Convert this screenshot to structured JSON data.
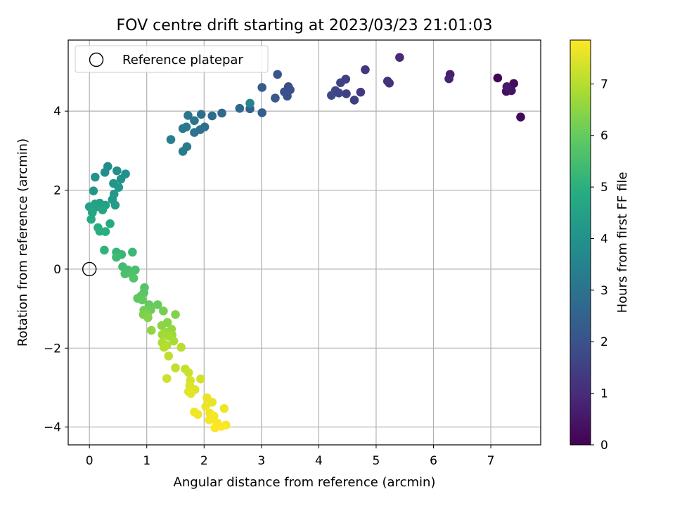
{
  "chart_data": {
    "type": "scatter",
    "title": "FOV centre drift starting at 2023/03/23 21:01:03",
    "xlabel": "Angular distance from reference (arcmin)",
    "ylabel": "Rotation from reference (arcmin)",
    "xlim": [
      -0.37,
      7.87
    ],
    "ylim": [
      -4.45,
      5.8
    ],
    "xticks": [
      0,
      1,
      2,
      3,
      4,
      5,
      6,
      7
    ],
    "yticks": [
      -4,
      -2,
      0,
      2,
      4
    ],
    "grid": true,
    "legend": {
      "entries": [
        "Reference platepar"
      ],
      "placement": "top-left"
    },
    "reference_point": {
      "x": 0,
      "y": 0,
      "label": "Reference platepar"
    },
    "colorbar": {
      "label": "Hours from first FF file",
      "range": [
        0,
        7.85
      ],
      "ticks": [
        0,
        1,
        2,
        3,
        4,
        5,
        6,
        7
      ],
      "colormap": "viridis"
    },
    "points": [
      {
        "x": 7.12,
        "y": 4.84,
        "h": 0.05
      },
      {
        "x": 7.52,
        "y": 3.85,
        "h": 0.15
      },
      {
        "x": 7.4,
        "y": 4.7,
        "h": 0.25
      },
      {
        "x": 7.27,
        "y": 4.5,
        "h": 0.35
      },
      {
        "x": 7.36,
        "y": 4.52,
        "h": 0.45
      },
      {
        "x": 7.28,
        "y": 4.62,
        "h": 0.55
      },
      {
        "x": 6.29,
        "y": 4.93,
        "h": 0.7
      },
      {
        "x": 6.27,
        "y": 4.82,
        "h": 0.8
      },
      {
        "x": 5.41,
        "y": 5.36,
        "h": 0.95
      },
      {
        "x": 5.2,
        "y": 4.76,
        "h": 1.05
      },
      {
        "x": 5.23,
        "y": 4.71,
        "h": 1.15
      },
      {
        "x": 4.81,
        "y": 5.05,
        "h": 1.25
      },
      {
        "x": 4.73,
        "y": 4.48,
        "h": 1.35
      },
      {
        "x": 4.62,
        "y": 4.28,
        "h": 1.45
      },
      {
        "x": 4.47,
        "y": 4.81,
        "h": 1.5
      },
      {
        "x": 4.48,
        "y": 4.44,
        "h": 1.55
      },
      {
        "x": 4.38,
        "y": 4.72,
        "h": 1.6
      },
      {
        "x": 4.35,
        "y": 4.46,
        "h": 1.65
      },
      {
        "x": 4.29,
        "y": 4.52,
        "h": 1.7
      },
      {
        "x": 4.22,
        "y": 4.4,
        "h": 1.75
      },
      {
        "x": 3.47,
        "y": 4.62,
        "h": 1.85
      },
      {
        "x": 3.5,
        "y": 4.54,
        "h": 1.9
      },
      {
        "x": 3.4,
        "y": 4.49,
        "h": 1.95
      },
      {
        "x": 3.45,
        "y": 4.38,
        "h": 2.0
      },
      {
        "x": 3.28,
        "y": 4.93,
        "h": 2.1
      },
      {
        "x": 3.24,
        "y": 4.33,
        "h": 2.2
      },
      {
        "x": 3.01,
        "y": 4.6,
        "h": 2.3
      },
      {
        "x": 3.01,
        "y": 3.96,
        "h": 2.4
      },
      {
        "x": 2.8,
        "y": 4.06,
        "h": 2.5
      },
      {
        "x": 2.62,
        "y": 4.07,
        "h": 2.6
      },
      {
        "x": 2.31,
        "y": 3.95,
        "h": 2.7
      },
      {
        "x": 2.14,
        "y": 3.88,
        "h": 2.8
      },
      {
        "x": 1.95,
        "y": 3.92,
        "h": 2.85
      },
      {
        "x": 2.01,
        "y": 3.6,
        "h": 2.9
      },
      {
        "x": 1.93,
        "y": 3.53,
        "h": 2.95
      },
      {
        "x": 1.83,
        "y": 3.46,
        "h": 3.0
      },
      {
        "x": 1.83,
        "y": 3.76,
        "h": 3.05
      },
      {
        "x": 1.72,
        "y": 3.89,
        "h": 3.1
      },
      {
        "x": 1.69,
        "y": 3.6,
        "h": 3.15
      },
      {
        "x": 1.63,
        "y": 3.56,
        "h": 3.2
      },
      {
        "x": 1.7,
        "y": 3.1,
        "h": 3.25
      },
      {
        "x": 1.63,
        "y": 2.98,
        "h": 3.3
      },
      {
        "x": 1.42,
        "y": 3.28,
        "h": 3.35
      },
      {
        "x": 2.8,
        "y": 4.2,
        "h": 3.6
      },
      {
        "x": 0.32,
        "y": 2.6,
        "h": 3.8
      },
      {
        "x": 0.48,
        "y": 2.49,
        "h": 3.85
      },
      {
        "x": 0.27,
        "y": 2.45,
        "h": 3.9
      },
      {
        "x": 0.63,
        "y": 2.41,
        "h": 3.95
      },
      {
        "x": 0.55,
        "y": 2.28,
        "h": 4.0
      },
      {
        "x": 0.1,
        "y": 2.33,
        "h": 4.05
      },
      {
        "x": 0.42,
        "y": 2.17,
        "h": 4.1
      },
      {
        "x": 0.51,
        "y": 2.07,
        "h": 4.15
      },
      {
        "x": 0.07,
        "y": 1.98,
        "h": 4.2
      },
      {
        "x": 0.43,
        "y": 1.9,
        "h": 4.25
      },
      {
        "x": 0.4,
        "y": 1.76,
        "h": 4.3
      },
      {
        "x": 0.45,
        "y": 1.62,
        "h": 4.35
      },
      {
        "x": 0.18,
        "y": 1.67,
        "h": 4.4
      },
      {
        "x": 0.1,
        "y": 1.65,
        "h": 4.45
      },
      {
        "x": 0.28,
        "y": 1.62,
        "h": 4.5
      },
      {
        "x": 0.0,
        "y": 1.58,
        "h": 4.55
      },
      {
        "x": 0.09,
        "y": 1.55,
        "h": 4.6
      },
      {
        "x": 0.23,
        "y": 1.5,
        "h": 4.65
      },
      {
        "x": 0.05,
        "y": 1.43,
        "h": 4.7
      },
      {
        "x": 0.03,
        "y": 1.26,
        "h": 4.75
      },
      {
        "x": 0.36,
        "y": 1.15,
        "h": 4.8
      },
      {
        "x": 0.15,
        "y": 1.05,
        "h": 4.85
      },
      {
        "x": 0.18,
        "y": 0.96,
        "h": 4.9
      },
      {
        "x": 0.28,
        "y": 0.95,
        "h": 4.95
      },
      {
        "x": 0.26,
        "y": 0.48,
        "h": 5.1
      },
      {
        "x": 0.47,
        "y": 0.43,
        "h": 5.2
      },
      {
        "x": 0.56,
        "y": 0.37,
        "h": 5.25
      },
      {
        "x": 0.75,
        "y": 0.43,
        "h": 5.3
      },
      {
        "x": 0.47,
        "y": 0.3,
        "h": 5.35
      },
      {
        "x": 0.58,
        "y": 0.06,
        "h": 5.45
      },
      {
        "x": 0.67,
        "y": -0.02,
        "h": 5.5
      },
      {
        "x": 0.8,
        "y": -0.02,
        "h": 5.55
      },
      {
        "x": 0.62,
        "y": -0.12,
        "h": 5.6
      },
      {
        "x": 0.74,
        "y": -0.13,
        "h": 5.65
      },
      {
        "x": 0.77,
        "y": -0.23,
        "h": 5.7
      },
      {
        "x": 0.96,
        "y": -0.47,
        "h": 5.75
      },
      {
        "x": 0.95,
        "y": -0.6,
        "h": 5.8
      },
      {
        "x": 0.9,
        "y": -0.68,
        "h": 5.85
      },
      {
        "x": 0.84,
        "y": -0.74,
        "h": 5.9
      },
      {
        "x": 0.92,
        "y": -0.78,
        "h": 5.95
      },
      {
        "x": 1.04,
        "y": -0.9,
        "h": 6.0
      },
      {
        "x": 1.19,
        "y": -0.9,
        "h": 6.05
      },
      {
        "x": 1.07,
        "y": -1.03,
        "h": 6.1
      },
      {
        "x": 0.95,
        "y": -1.04,
        "h": 6.15
      },
      {
        "x": 1.29,
        "y": -1.06,
        "h": 6.2
      },
      {
        "x": 1.01,
        "y": -1.14,
        "h": 6.25
      },
      {
        "x": 0.94,
        "y": -1.15,
        "h": 6.3
      },
      {
        "x": 1.5,
        "y": -1.15,
        "h": 6.35
      },
      {
        "x": 1.02,
        "y": -1.23,
        "h": 6.4
      },
      {
        "x": 1.36,
        "y": -1.35,
        "h": 6.45
      },
      {
        "x": 1.26,
        "y": -1.43,
        "h": 6.5
      },
      {
        "x": 1.08,
        "y": -1.55,
        "h": 6.55
      },
      {
        "x": 1.43,
        "y": -1.52,
        "h": 6.6
      },
      {
        "x": 1.32,
        "y": -1.6,
        "h": 6.65
      },
      {
        "x": 1.44,
        "y": -1.66,
        "h": 6.7
      },
      {
        "x": 1.27,
        "y": -1.66,
        "h": 6.75
      },
      {
        "x": 1.38,
        "y": -1.7,
        "h": 6.8
      },
      {
        "x": 1.47,
        "y": -1.82,
        "h": 6.85
      },
      {
        "x": 1.27,
        "y": -1.86,
        "h": 6.9
      },
      {
        "x": 1.35,
        "y": -1.93,
        "h": 6.95
      },
      {
        "x": 1.3,
        "y": -1.98,
        "h": 7.0
      },
      {
        "x": 1.6,
        "y": -1.98,
        "h": 7.05
      },
      {
        "x": 1.38,
        "y": -2.2,
        "h": 7.1
      },
      {
        "x": 1.5,
        "y": -2.5,
        "h": 7.15
      },
      {
        "x": 1.67,
        "y": -2.53,
        "h": 7.2
      },
      {
        "x": 1.73,
        "y": -2.62,
        "h": 7.25
      },
      {
        "x": 1.35,
        "y": -2.77,
        "h": 7.3
      },
      {
        "x": 1.94,
        "y": -2.78,
        "h": 7.35
      },
      {
        "x": 1.76,
        "y": -2.82,
        "h": 7.4
      },
      {
        "x": 1.75,
        "y": -2.95,
        "h": 7.45
      },
      {
        "x": 1.84,
        "y": -3.05,
        "h": 7.5
      },
      {
        "x": 1.73,
        "y": -3.1,
        "h": 7.5
      },
      {
        "x": 1.77,
        "y": -3.15,
        "h": 7.55
      },
      {
        "x": 2.05,
        "y": -3.26,
        "h": 7.6
      },
      {
        "x": 2.14,
        "y": -3.37,
        "h": 7.6
      },
      {
        "x": 2.03,
        "y": -3.48,
        "h": 7.65
      },
      {
        "x": 2.35,
        "y": -3.53,
        "h": 7.65
      },
      {
        "x": 1.83,
        "y": -3.62,
        "h": 7.7
      },
      {
        "x": 2.1,
        "y": -3.65,
        "h": 7.7
      },
      {
        "x": 1.89,
        "y": -3.68,
        "h": 7.7
      },
      {
        "x": 2.17,
        "y": -3.72,
        "h": 7.75
      },
      {
        "x": 2.09,
        "y": -3.82,
        "h": 7.75
      },
      {
        "x": 2.23,
        "y": -3.9,
        "h": 7.8
      },
      {
        "x": 2.38,
        "y": -3.95,
        "h": 7.8
      },
      {
        "x": 2.3,
        "y": -3.98,
        "h": 7.85
      },
      {
        "x": 2.19,
        "y": -4.02,
        "h": 7.85
      }
    ]
  }
}
